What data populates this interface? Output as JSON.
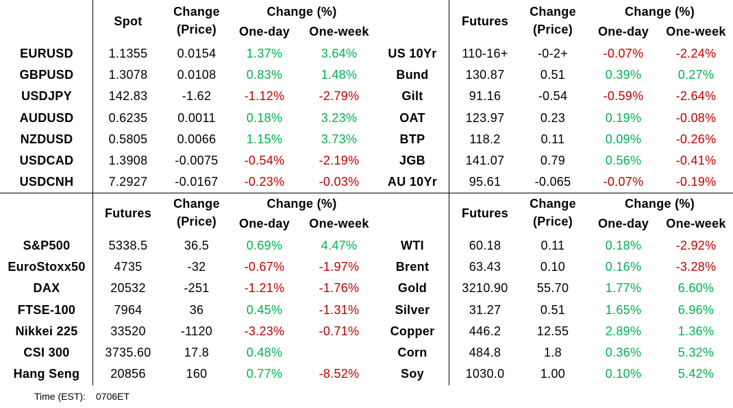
{
  "positive_color": "#00b050",
  "negative_color": "#c00000",
  "tables": [
    {
      "headers": {
        "price": "Spot",
        "change": [
          "Change",
          "(Price)"
        ],
        "pct": "Change (%)",
        "day": "One-day",
        "week": "One-week"
      },
      "rows": [
        [
          "EURUSD",
          "1.1355",
          "0.0154",
          "1.37%",
          "3.64%"
        ],
        [
          "GBPUSD",
          "1.3078",
          "0.0108",
          "0.83%",
          "1.48%"
        ],
        [
          "USDJPY",
          "142.83",
          "-1.62",
          "-1.12%",
          "-2.79%"
        ],
        [
          "AUDUSD",
          "0.6235",
          "0.0011",
          "0.18%",
          "3.23%"
        ],
        [
          "NZDUSD",
          "0.5805",
          "0.0066",
          "1.15%",
          "3.73%"
        ],
        [
          "USDCAD",
          "1.3908",
          "-0.0075",
          "-0.54%",
          "-2.19%"
        ],
        [
          "USDCNH",
          "7.2927",
          "-0.0167",
          "-0.23%",
          "-0.03%"
        ]
      ]
    },
    {
      "headers": {
        "price": "Futures",
        "change": [
          "Change",
          "(Price)"
        ],
        "pct": "Change (%)",
        "day": "One-day",
        "week": "One-week"
      },
      "rows": [
        [
          "US 10Yr",
          "110-16+",
          "-0-2+",
          "-0.07%",
          "-2.24%"
        ],
        [
          "Bund",
          "130.87",
          "0.51",
          "0.39%",
          "0.27%"
        ],
        [
          "Gilt",
          "91.16",
          "-0.54",
          "-0.59%",
          "-2.64%"
        ],
        [
          "OAT",
          "123.97",
          "0.23",
          "0.19%",
          "-0.08%"
        ],
        [
          "BTP",
          "118.2",
          "0.11",
          "0.09%",
          "-0.26%"
        ],
        [
          "JGB",
          "141.07",
          "0.79",
          "0.56%",
          "-0.41%"
        ],
        [
          "AU 10Yr",
          "95.61",
          "-0.065",
          "-0.07%",
          "-0.19%"
        ]
      ]
    },
    {
      "headers": {
        "price": "Futures",
        "change": [
          "Change",
          "(Price)"
        ],
        "pct": "Change (%)",
        "day": "One-day",
        "week": "One-week"
      },
      "rows": [
        [
          "S&P500",
          "5338.5",
          "36.5",
          "0.69%",
          "4.47%"
        ],
        [
          "EuroStoxx50",
          "4735",
          "-32",
          "-0.67%",
          "-1.97%"
        ],
        [
          "DAX",
          "20532",
          "-251",
          "-1.21%",
          "-1.76%"
        ],
        [
          "FTSE-100",
          "7964",
          "36",
          "0.45%",
          "-1.31%"
        ],
        [
          "Nikkei 225",
          "33520",
          "-1120",
          "-3.23%",
          "-0.71%"
        ],
        [
          "CSI 300",
          "3735.60",
          "17.8",
          "0.48%",
          null
        ],
        [
          "Hang Seng",
          "20856",
          "160",
          "0.77%",
          "-8.52%"
        ]
      ]
    },
    {
      "headers": {
        "price": "Futures",
        "change": [
          "Change",
          "(Price)"
        ],
        "pct": "Change (%)",
        "day": "One-day",
        "week": "One-week"
      },
      "rows": [
        [
          "WTI",
          "60.18",
          "0.11",
          "0.18%",
          "-2.92%"
        ],
        [
          "Brent",
          "63.43",
          "0.10",
          "0.16%",
          "-3.28%"
        ],
        [
          "Gold",
          "3210.90",
          "55.70",
          "1.77%",
          "6.60%"
        ],
        [
          "Silver",
          "31.27",
          "0.51",
          "1.65%",
          "6.96%"
        ],
        [
          "Copper",
          "446.2",
          "12.55",
          "2.89%",
          "1.36%"
        ],
        [
          "Corn",
          "484.8",
          "1.8",
          "0.36%",
          "5.32%"
        ],
        [
          "Soy",
          "1030.0",
          "1.00",
          "0.10%",
          "5.42%"
        ]
      ]
    }
  ],
  "footer": {
    "label": "Time (EST):",
    "value": "0706ET"
  }
}
